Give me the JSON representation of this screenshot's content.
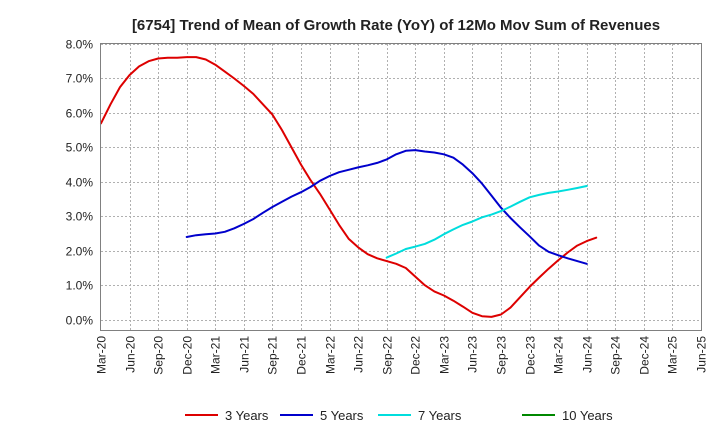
{
  "chart_data": {
    "type": "line",
    "title": "[6754]  Trend of Mean of Growth Rate (YoY) of 12Mo Mov Sum of Revenues",
    "xlabel": "",
    "ylabel": "",
    "ylim": [
      -0.3,
      8.0
    ],
    "yticks": [
      {
        "value": 0.0,
        "label": "0.0%"
      },
      {
        "value": 1.0,
        "label": "1.0%"
      },
      {
        "value": 2.0,
        "label": "2.0%"
      },
      {
        "value": 3.0,
        "label": "3.0%"
      },
      {
        "value": 4.0,
        "label": "4.0%"
      },
      {
        "value": 5.0,
        "label": "5.0%"
      },
      {
        "value": 6.0,
        "label": "6.0%"
      },
      {
        "value": 7.0,
        "label": "7.0%"
      },
      {
        "value": 8.0,
        "label": "8.0%"
      }
    ],
    "xticks": [
      "Mar-20",
      "Jun-20",
      "Sep-20",
      "Dec-20",
      "Mar-21",
      "Jun-21",
      "Sep-21",
      "Dec-21",
      "Mar-22",
      "Jun-22",
      "Sep-22",
      "Dec-22",
      "Mar-23",
      "Jun-23",
      "Sep-23",
      "Dec-23",
      "Mar-24",
      "Jun-24",
      "Sep-24",
      "Dec-24",
      "Mar-25",
      "Jun-25"
    ],
    "grid": true,
    "legend_position": "bottom",
    "series": [
      {
        "name": "3 Years",
        "color": "#dd0000",
        "start_index": 0,
        "values": [
          5.7,
          6.25,
          6.75,
          7.1,
          7.35,
          7.5,
          7.58,
          7.6,
          7.6,
          7.62,
          7.62,
          7.55,
          7.4,
          7.2,
          7.0,
          6.78,
          6.55,
          6.25,
          5.95,
          5.5,
          5.0,
          4.5,
          4.05,
          3.65,
          3.2,
          2.75,
          2.35,
          2.1,
          1.9,
          1.78,
          1.7,
          1.62,
          1.5,
          1.25,
          1.0,
          0.82,
          0.7,
          0.55,
          0.38,
          0.2,
          0.1,
          0.08,
          0.15,
          0.35,
          0.65,
          0.95,
          1.22,
          1.48,
          1.72,
          1.95,
          2.15,
          2.28,
          2.38
        ]
      },
      {
        "name": "5 Years",
        "color": "#0000cc",
        "start_index": 9,
        "values": [
          2.4,
          2.45,
          2.48,
          2.5,
          2.55,
          2.65,
          2.78,
          2.92,
          3.1,
          3.27,
          3.42,
          3.57,
          3.7,
          3.85,
          4.03,
          4.17,
          4.28,
          4.35,
          4.42,
          4.48,
          4.55,
          4.65,
          4.8,
          4.9,
          4.92,
          4.88,
          4.85,
          4.8,
          4.7,
          4.5,
          4.25,
          3.95,
          3.6,
          3.25,
          2.95,
          2.68,
          2.42,
          2.15,
          1.97,
          1.87,
          1.78,
          1.7,
          1.62
        ]
      },
      {
        "name": "7 Years",
        "color": "#00dddd",
        "start_index": 30,
        "values": [
          1.8,
          1.92,
          2.05,
          2.12,
          2.2,
          2.32,
          2.48,
          2.62,
          2.75,
          2.85,
          2.97,
          3.05,
          3.15,
          3.28,
          3.42,
          3.55,
          3.62,
          3.68,
          3.72,
          3.77,
          3.82,
          3.88
        ]
      },
      {
        "name": "10 Years",
        "color": "#008800",
        "start_index": 0,
        "values": []
      }
    ]
  }
}
